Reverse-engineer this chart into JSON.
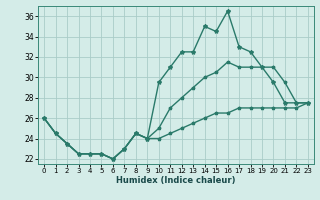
{
  "title": "",
  "xlabel": "Humidex (Indice chaleur)",
  "bg_color": "#d4ece8",
  "grid_color": "#aaccc8",
  "line_color": "#2a7a6a",
  "x": [
    0,
    1,
    2,
    3,
    4,
    5,
    6,
    7,
    8,
    9,
    10,
    11,
    12,
    13,
    14,
    15,
    16,
    17,
    18,
    19,
    20,
    21,
    22,
    23
  ],
  "y_main": [
    26,
    24.5,
    23.5,
    22.5,
    22.5,
    22.5,
    22,
    23,
    24.5,
    24,
    29.5,
    31,
    32.5,
    32.5,
    35,
    34.5,
    36.5,
    33,
    32.5,
    31,
    29.5,
    27.5,
    27.5,
    27.5
  ],
  "y_upper": [
    26,
    24.5,
    23.5,
    22.5,
    22.5,
    22.5,
    22,
    23,
    24.5,
    24,
    25,
    27,
    28,
    29,
    30,
    30.5,
    31.5,
    31,
    31,
    31,
    31,
    29.5,
    27.5,
    27.5
  ],
  "y_lower": [
    26,
    24.5,
    23.5,
    22.5,
    22.5,
    22.5,
    22,
    23,
    24.5,
    24,
    24,
    24.5,
    25,
    25.5,
    26,
    26.5,
    26.5,
    27,
    27,
    27,
    27,
    27,
    27,
    27.5
  ],
  "ylim": [
    21.5,
    37
  ],
  "xlim": [
    -0.5,
    23.5
  ],
  "yticks": [
    22,
    24,
    26,
    28,
    30,
    32,
    34,
    36
  ],
  "xticks": [
    0,
    1,
    2,
    3,
    4,
    5,
    6,
    7,
    8,
    9,
    10,
    11,
    12,
    13,
    14,
    15,
    16,
    17,
    18,
    19,
    20,
    21,
    22,
    23
  ],
  "tick_fontsize": 5.5,
  "xlabel_fontsize": 6.0,
  "lw": 1.0,
  "ms": 2.5
}
